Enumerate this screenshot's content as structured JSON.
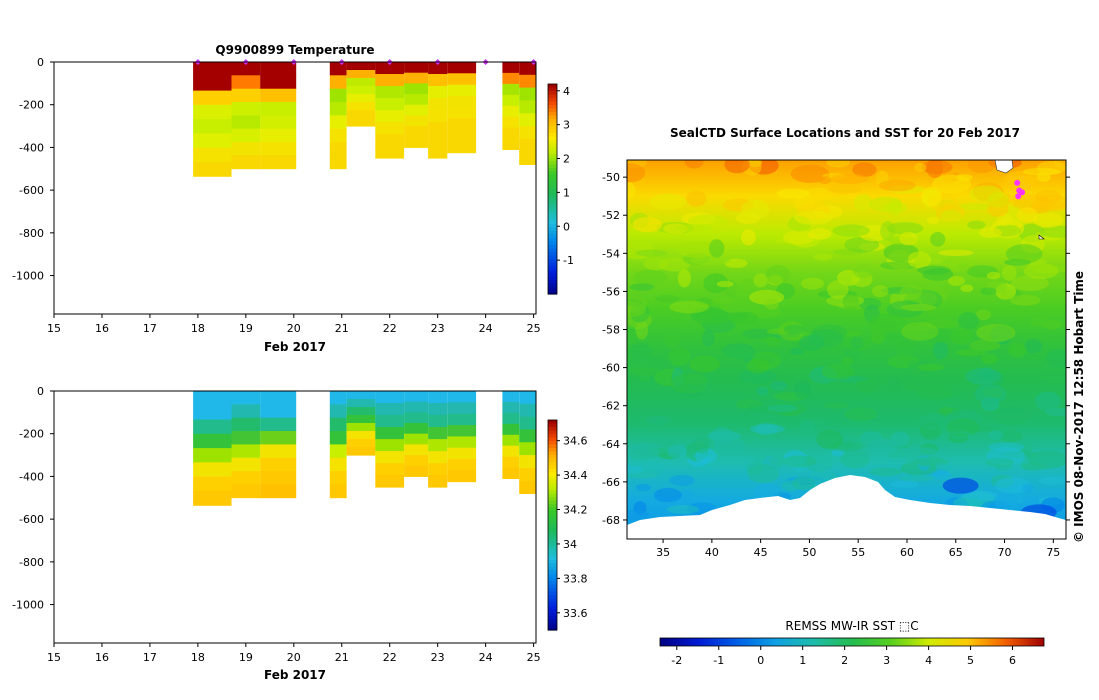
{
  "chart_data": [
    {
      "id": "temperature",
      "type": "heatmap",
      "title": "Q9900899  Temperature",
      "xlabel": "Feb 2017",
      "ylabel": "",
      "x_ticks": [
        "15",
        "16",
        "17",
        "18",
        "19",
        "20",
        "21",
        "22",
        "23",
        "24",
        "25"
      ],
      "xlim": [
        15,
        25.05
      ],
      "y_ticks": [
        0,
        -200,
        -400,
        -600,
        -800,
        -1000
      ],
      "ylim": [
        -1180,
        0
      ],
      "colorbar": {
        "ticks": [
          4,
          3,
          2,
          1,
          0,
          -1
        ],
        "range": [
          -2,
          4.2
        ]
      },
      "profiles": [
        {
          "x0": 17.9,
          "x1": 18.7,
          "max_depth": -535,
          "colors": [
            "#a50000",
            "#a50000",
            "#ffd000",
            "#d9f000",
            "#c8ee00",
            "#dff000",
            "#f5e200",
            "#f8d800"
          ]
        },
        {
          "x0": 18.7,
          "x1": 19.3,
          "max_depth": -500,
          "colors": [
            "#a50000",
            "#ff7a00",
            "#ffd000",
            "#cdef00",
            "#b8ea00",
            "#d7f000",
            "#f2e400",
            "#f8d800"
          ]
        },
        {
          "x0": 19.3,
          "x1": 20.05,
          "max_depth": -500,
          "colors": [
            "#a50000",
            "#a50000",
            "#ffc000",
            "#c8ee00",
            "#d3ef00",
            "#e8ee00",
            "#f5e200",
            "#f8d800"
          ]
        },
        {
          "x0": 20.75,
          "x1": 21.1,
          "max_depth": -500,
          "colors": [
            "#a50000",
            "#ffb000",
            "#9fe400",
            "#b8ea00",
            "#e7ef00",
            "#f5e200",
            "#f8d800",
            "#f8d800"
          ]
        },
        {
          "x0": 21.1,
          "x1": 21.7,
          "max_depth": -300,
          "colors": [
            "#a50000",
            "#ffb000",
            "#bfeb00",
            "#cdef00",
            "#e8ee00",
            "#f5e200",
            "#f8d800",
            "#f8d800"
          ]
        },
        {
          "x0": 21.7,
          "x1": 22.3,
          "max_depth": -450,
          "colors": [
            "#a50000",
            "#ffb000",
            "#b0e800",
            "#c8ee00",
            "#e8ee00",
            "#f5e200",
            "#f8d800",
            "#f8d800"
          ]
        },
        {
          "x0": 22.3,
          "x1": 22.8,
          "max_depth": -400,
          "colors": [
            "#a50000",
            "#ffb000",
            "#9fe400",
            "#b8ea00",
            "#e0f000",
            "#f2e400",
            "#f8d800",
            "#f8d800"
          ]
        },
        {
          "x0": 22.8,
          "x1": 23.2,
          "max_depth": -450,
          "colors": [
            "#a50000",
            "#ffc000",
            "#e6ee00",
            "#f2e400",
            "#f5e200",
            "#f8d800",
            "#f8d800",
            "#f8d800"
          ]
        },
        {
          "x0": 23.2,
          "x1": 23.8,
          "max_depth": -425,
          "colors": [
            "#a50000",
            "#ffc000",
            "#e8ee00",
            "#f2e400",
            "#f5e200",
            "#f8d800",
            "#f8d800",
            "#f8d800"
          ]
        },
        {
          "x0": 24.35,
          "x1": 24.7,
          "max_depth": -410,
          "colors": [
            "#a50000",
            "#ff8800",
            "#a5e500",
            "#c8ee00",
            "#e8ee00",
            "#f5e200",
            "#f8d800",
            "#f8d800"
          ]
        },
        {
          "x0": 24.7,
          "x1": 25.08,
          "max_depth": -480,
          "colors": [
            "#a50000",
            "#ff8800",
            "#9fe400",
            "#b8ea00",
            "#e0f000",
            "#f5e200",
            "#f8d800",
            "#f8d800"
          ]
        }
      ],
      "markers_x": [
        18.0,
        19.0,
        20.0,
        21.0,
        22.0,
        23.0,
        24.0,
        25.0
      ]
    },
    {
      "id": "salinity",
      "type": "heatmap",
      "title": "",
      "xlabel": "Feb 2017",
      "ylabel": "",
      "x_ticks": [
        "15",
        "16",
        "17",
        "18",
        "19",
        "20",
        "21",
        "22",
        "23",
        "24",
        "25"
      ],
      "xlim": [
        15,
        25.05
      ],
      "y_ticks": [
        0,
        -200,
        -400,
        -600,
        -800,
        -1000
      ],
      "ylim": [
        -1180,
        0
      ],
      "colorbar": {
        "ticks": [
          "34.6",
          "34.4",
          "34.2",
          "34",
          "33.8",
          "33.6"
        ],
        "range": [
          33.5,
          34.72
        ]
      },
      "profiles": [
        {
          "x0": 17.9,
          "x1": 18.7,
          "max_depth": -535,
          "colors": [
            "#20b8e8",
            "#20b8e8",
            "#22bc8c",
            "#34c23a",
            "#9ee300",
            "#f2e400",
            "#ffd000",
            "#ffc800"
          ]
        },
        {
          "x0": 18.7,
          "x1": 19.3,
          "max_depth": -500,
          "colors": [
            "#20b8e8",
            "#22b8b0",
            "#22bc6c",
            "#42c434",
            "#aee600",
            "#f2e400",
            "#ffd000",
            "#ffc800"
          ]
        },
        {
          "x0": 19.3,
          "x1": 20.05,
          "max_depth": -500,
          "colors": [
            "#20b8e8",
            "#20b8e8",
            "#22bc8c",
            "#6ad01a",
            "#f2e400",
            "#ffd000",
            "#ffc800",
            "#ffc000"
          ]
        },
        {
          "x0": 20.75,
          "x1": 21.1,
          "max_depth": -500,
          "colors": [
            "#20b8e8",
            "#22b8b0",
            "#22bc6c",
            "#34c23a",
            "#c8ee00",
            "#f5e200",
            "#ffd000",
            "#ffc800"
          ]
        },
        {
          "x0": 21.1,
          "x1": 21.7,
          "max_depth": -300,
          "colors": [
            "#20b8e8",
            "#22b8b0",
            "#22bc6c",
            "#34c23a",
            "#9ee300",
            "#f5e200",
            "#ffd000",
            "#ffc800"
          ]
        },
        {
          "x0": 21.7,
          "x1": 22.3,
          "max_depth": -450,
          "colors": [
            "#20b8e8",
            "#22b8b0",
            "#22bc8c",
            "#34c23a",
            "#9ee300",
            "#f2e400",
            "#ffd000",
            "#ffc800"
          ]
        },
        {
          "x0": 22.3,
          "x1": 22.8,
          "max_depth": -400,
          "colors": [
            "#20b8e8",
            "#22b8b0",
            "#22bc8c",
            "#34c23a",
            "#9ee300",
            "#f2e400",
            "#ffd000",
            "#ffc800"
          ]
        },
        {
          "x0": 22.8,
          "x1": 23.2,
          "max_depth": -450,
          "colors": [
            "#20b8e8",
            "#22b8b0",
            "#22bc8c",
            "#42c434",
            "#aee600",
            "#f2e400",
            "#ffd000",
            "#ffc800"
          ]
        },
        {
          "x0": 23.2,
          "x1": 23.8,
          "max_depth": -425,
          "colors": [
            "#20b8e8",
            "#22b8b0",
            "#22bc8c",
            "#42c434",
            "#aee600",
            "#f2e400",
            "#ffd000",
            "#ffc800"
          ]
        },
        {
          "x0": 24.35,
          "x1": 24.7,
          "max_depth": -410,
          "colors": [
            "#20b8e8",
            "#22b8b0",
            "#22bc8c",
            "#34c23a",
            "#9ee300",
            "#f2e400",
            "#ffd000",
            "#ffc800"
          ]
        },
        {
          "x0": 24.7,
          "x1": 25.08,
          "max_depth": -480,
          "colors": [
            "#20b8e8",
            "#22b8b0",
            "#22bc8c",
            "#34c23a",
            "#9ee300",
            "#f2e400",
            "#ffd000",
            "#ffc800"
          ]
        }
      ]
    },
    {
      "id": "sst-map",
      "type": "heatmap",
      "title": "SealCTD Surface Locations and SST for 20 Feb 2017",
      "xlabel": "",
      "ylabel": "",
      "x_ticks": [
        35,
        40,
        45,
        50,
        55,
        60,
        65,
        70,
        75
      ],
      "xlim": [
        31.3,
        76.3
      ],
      "y_ticks": [
        -50,
        -52,
        -54,
        -56,
        -58,
        -60,
        -62,
        -64,
        -66,
        -68
      ],
      "ylim": [
        -69,
        -49.1
      ],
      "colorbar": {
        "label": "REMSS MW-IR SST ⬚C",
        "ticks": [
          -2,
          -1,
          0,
          1,
          2,
          3,
          4,
          5,
          6
        ],
        "range": [
          -2.4,
          6.75
        ]
      },
      "lat_color_bands": [
        {
          "lat": -49.1,
          "sst": 5.4
        },
        {
          "lat": -51,
          "sst": 4.7
        },
        {
          "lat": -53,
          "sst": 3.8
        },
        {
          "lat": -55,
          "sst": 3.3
        },
        {
          "lat": -57,
          "sst": 3.0
        },
        {
          "lat": -59,
          "sst": 2.5
        },
        {
          "lat": -61,
          "sst": 2.1
        },
        {
          "lat": -63,
          "sst": 1.8
        },
        {
          "lat": -65,
          "sst": 1.2
        },
        {
          "lat": -67,
          "sst": 0.5
        },
        {
          "lat": -69,
          "sst": 0.2
        }
      ],
      "seal_locations": [
        {
          "lon": 71.3,
          "lat": -50.3
        },
        {
          "lon": 71.5,
          "lat": -50.7
        },
        {
          "lon": 71.4,
          "lat": -51.0
        },
        {
          "lon": 71.8,
          "lat": -50.8
        }
      ],
      "colors": {
        "marker": "#ff33ff",
        "land": "#ffffff"
      }
    }
  ],
  "credit": "©  IMOS 08-Nov-2017 12:58 Hobart Time"
}
